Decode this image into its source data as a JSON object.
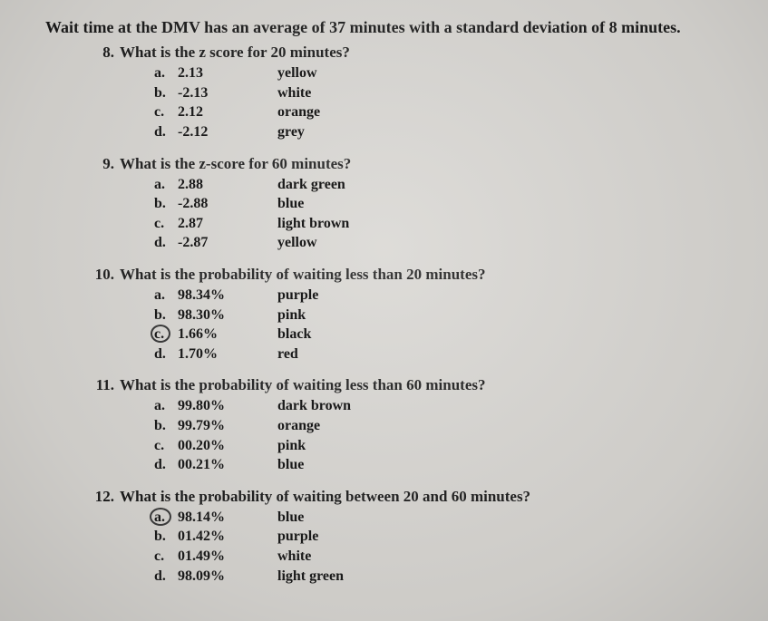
{
  "intro": "Wait time at the DMV has an average of 37 minutes with a standard deviation of 8 minutes.",
  "questions": [
    {
      "num": "8.",
      "text": "What is the z score for 20 minutes?",
      "options": [
        {
          "letter": "a.",
          "value": "2.13",
          "color": "yellow",
          "circled": false
        },
        {
          "letter": "b.",
          "value": "-2.13",
          "color": "white",
          "circled": false
        },
        {
          "letter": "c.",
          "value": "2.12",
          "color": "orange",
          "circled": false
        },
        {
          "letter": "d.",
          "value": "-2.12",
          "color": "grey",
          "circled": false
        }
      ]
    },
    {
      "num": "9.",
      "text": "What is the z-score for 60 minutes?",
      "options": [
        {
          "letter": "a.",
          "value": "2.88",
          "color": "dark green",
          "circled": false
        },
        {
          "letter": "b.",
          "value": "-2.88",
          "color": "blue",
          "circled": false
        },
        {
          "letter": "c.",
          "value": "2.87",
          "color": "light brown",
          "circled": false
        },
        {
          "letter": "d.",
          "value": "-2.87",
          "color": "yellow",
          "circled": false
        }
      ]
    },
    {
      "num": "10.",
      "text": "What is the probability of waiting less than 20 minutes?",
      "options": [
        {
          "letter": "a.",
          "value": "98.34%",
          "color": "purple",
          "circled": false
        },
        {
          "letter": "b.",
          "value": "98.30%",
          "color": "pink",
          "circled": false
        },
        {
          "letter": "c.",
          "value": "1.66%",
          "color": "black",
          "circled": true
        },
        {
          "letter": "d.",
          "value": "1.70%",
          "color": "red",
          "circled": false
        }
      ]
    },
    {
      "num": "11.",
      "text": "What is the probability of waiting less than 60 minutes?",
      "options": [
        {
          "letter": "a.",
          "value": "99.80%",
          "color": "dark brown",
          "circled": false
        },
        {
          "letter": "b.",
          "value": "99.79%",
          "color": "orange",
          "circled": false
        },
        {
          "letter": "c.",
          "value": "00.20%",
          "color": "pink",
          "circled": false
        },
        {
          "letter": "d.",
          "value": "00.21%",
          "color": "blue",
          "circled": false
        }
      ]
    },
    {
      "num": "12.",
      "text": "What is the probability of waiting between 20 and 60 minutes?",
      "options": [
        {
          "letter": "a.",
          "value": "98.14%",
          "color": "blue",
          "circled": true
        },
        {
          "letter": "b.",
          "value": "01.42%",
          "color": "purple",
          "circled": false
        },
        {
          "letter": "c.",
          "value": "01.49%",
          "color": "white",
          "circled": false
        },
        {
          "letter": "d.",
          "value": "98.09%",
          "color": "light green",
          "circled": false
        }
      ]
    }
  ]
}
